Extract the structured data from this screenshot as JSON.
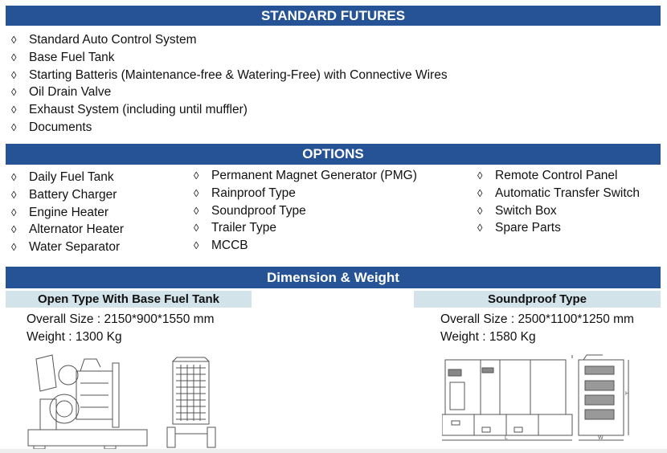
{
  "standard": {
    "title": "STANDARD FUTURES",
    "items": [
      "Standard Auto Control System",
      "Base Fuel Tank",
      "Starting Batteris (Maintenance-free & Watering-Free) with Connective Wires",
      "Oil Drain Valve",
      "Exhaust System (including until muffler)",
      "Documents"
    ]
  },
  "options": {
    "title": "OPTIONS",
    "col1": [
      "Daily Fuel Tank",
      "Battery Charger",
      "Engine Heater",
      "Alternator Heater",
      "Water Separator"
    ],
    "col2": [
      "Permanent Magnet Generator (PMG)",
      "Rainproof Type",
      "Soundproof Type",
      "Trailer Type",
      "MCCB"
    ],
    "col3": [
      "Remote Control Panel",
      "Automatic Transfer Switch",
      "Switch Box",
      "Spare Parts"
    ]
  },
  "dimension": {
    "title": "Dimension & Weight",
    "open": {
      "title": "Open Type With Base Fuel Tank",
      "size": "Overall Size : 2150*900*1550 mm",
      "weight": "Weight : 1300 Kg"
    },
    "soundproof": {
      "title": "Soundproof Type",
      "size": "Overall Size : 2500*1100*1250 mm",
      "weight": "Weight : 1580 Kg",
      "dim_labels": {
        "length": "L",
        "width": "W",
        "height": "H"
      }
    }
  },
  "bullet": "◊",
  "colors": {
    "header": "#265396",
    "subheader": "#d3e3ea"
  }
}
